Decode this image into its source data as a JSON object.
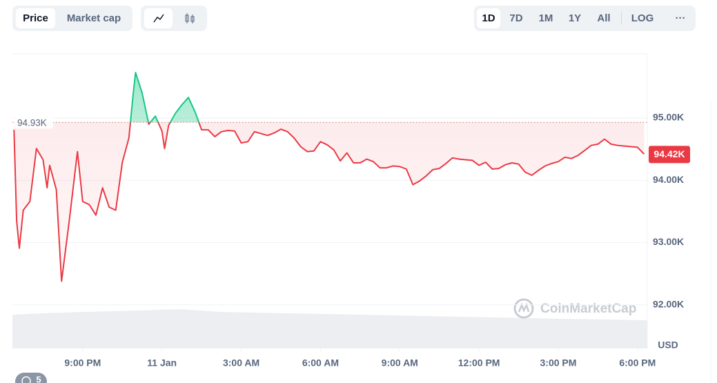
{
  "toolbar": {
    "tabs": [
      "Price",
      "Market cap"
    ],
    "ranges": [
      "1D",
      "7D",
      "1M",
      "1Y",
      "All"
    ],
    "log": "LOG",
    "more": "···"
  },
  "watermark": "CoinMarketCap",
  "badge": "5",
  "chart_data": {
    "type": "line",
    "color_up": "#16c784",
    "color_down": "#ea3943",
    "grid": true,
    "y_label": "USD",
    "reference": {
      "value": 94930,
      "label": "94.93K"
    },
    "last_value_label": "94.42K",
    "xlim": [
      18.34,
      42.37
    ],
    "ylim": [
      91300,
      96030
    ],
    "xticks": [
      {
        "value": 21,
        "label": "9:00 PM"
      },
      {
        "value": 24,
        "label": "11 Jan"
      },
      {
        "value": 27,
        "label": "3:00 AM"
      },
      {
        "value": 30,
        "label": "6:00 AM"
      },
      {
        "value": 33,
        "label": "9:00 AM"
      },
      {
        "value": 36,
        "label": "12:00 PM"
      },
      {
        "value": 39,
        "label": "3:00 PM"
      },
      {
        "value": 42,
        "label": "6:00 PM"
      }
    ],
    "yticks": [
      {
        "value": 92000,
        "label": "92.00K"
      },
      {
        "value": 93000,
        "label": "93.00K"
      },
      {
        "value": 94000,
        "label": "94.00K"
      },
      {
        "value": 95000,
        "label": "95.00K"
      }
    ],
    "x": [
      18.4,
      18.5,
      18.6,
      18.75,
      19.0,
      19.25,
      19.5,
      19.65,
      19.75,
      20.0,
      20.2,
      20.5,
      20.8,
      21.0,
      21.25,
      21.5,
      21.75,
      22.0,
      22.25,
      22.5,
      22.75,
      22.9,
      23.0,
      23.25,
      23.5,
      23.75,
      24.0,
      24.1,
      24.25,
      24.5,
      24.75,
      25.0,
      25.25,
      25.5,
      25.75,
      26.0,
      26.25,
      26.5,
      26.75,
      27.0,
      27.25,
      27.5,
      27.75,
      28.0,
      28.25,
      28.5,
      28.75,
      29.0,
      29.25,
      29.5,
      29.75,
      30.0,
      30.25,
      30.5,
      30.75,
      31.0,
      31.25,
      31.5,
      31.75,
      32.0,
      32.25,
      32.5,
      32.75,
      33.0,
      33.25,
      33.5,
      33.75,
      34.0,
      34.25,
      34.5,
      34.75,
      35.0,
      35.25,
      35.5,
      35.75,
      36.0,
      36.25,
      36.5,
      36.75,
      37.0,
      37.25,
      37.5,
      37.75,
      38.0,
      38.25,
      38.5,
      38.75,
      39.0,
      39.25,
      39.5,
      39.75,
      40.0,
      40.25,
      40.5,
      40.75,
      41.0,
      41.25,
      41.5,
      41.75,
      42.0,
      42.25
    ],
    "values": [
      94810,
      93350,
      92910,
      93520,
      93660,
      94510,
      94330,
      93880,
      94240,
      93850,
      92380,
      93380,
      94460,
      93660,
      93610,
      93440,
      93880,
      93570,
      93520,
      94290,
      94680,
      95340,
      95730,
      95400,
      94900,
      95030,
      94790,
      94510,
      94880,
      95070,
      95210,
      95330,
      95100,
      94810,
      94810,
      94700,
      94780,
      94800,
      94790,
      94600,
      94620,
      94780,
      94750,
      94720,
      94760,
      94820,
      94780,
      94680,
      94540,
      94460,
      94470,
      94620,
      94570,
      94490,
      94310,
      94440,
      94280,
      94280,
      94340,
      94300,
      94200,
      94200,
      94230,
      94220,
      94180,
      93930,
      93990,
      94070,
      94170,
      94190,
      94270,
      94360,
      94340,
      94330,
      94320,
      94240,
      94290,
      94180,
      94190,
      94250,
      94280,
      94260,
      94130,
      94080,
      94160,
      94230,
      94270,
      94300,
      94370,
      94350,
      94400,
      94480,
      94560,
      94580,
      94660,
      94580,
      94560,
      94550,
      94540,
      94530,
      94420
    ]
  }
}
